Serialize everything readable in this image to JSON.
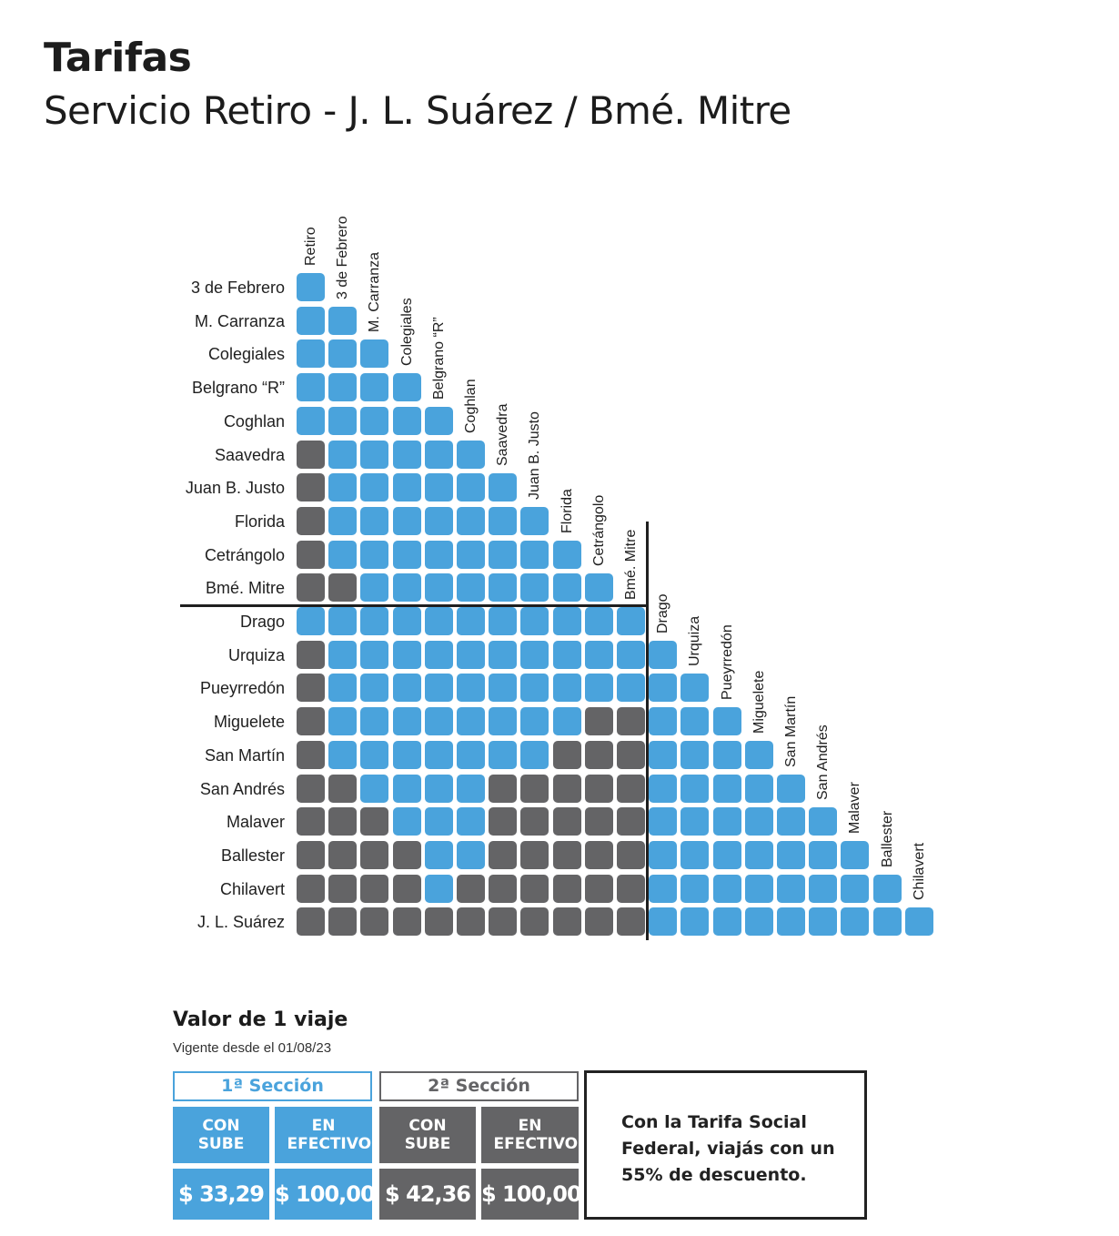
{
  "header": {
    "title": "Tarifas",
    "subtitle": "Servicio Retiro - J. L. Suárez / Bmé. Mitre"
  },
  "stations": {
    "columns": [
      "Retiro",
      "3 de Febrero",
      "M. Carranza",
      "Colegiales",
      "Belgrano “R”",
      "Coghlan",
      "Saavedra",
      "Juan B. Justo",
      "Florida",
      "Cetrángolo",
      "Bmé. Mitre",
      "Drago",
      "Urquiza",
      "Pueyrredón",
      "Miguelete",
      "San Martín",
      "San Andrés",
      "Malaver",
      "Ballester",
      "Chilavert"
    ],
    "rows": [
      "3 de Febrero",
      "M. Carranza",
      "Colegiales",
      "Belgrano “R”",
      "Coghlan",
      "Saavedra",
      "Juan B. Justo",
      "Florida",
      "Cetrángolo",
      "Bmé. Mitre",
      "Drago",
      "Urquiza",
      "Pueyrredón",
      "Miguelete",
      "San Martín",
      "San Andrés",
      "Malaver",
      "Ballester",
      "Chilavert",
      "J. L. Suárez"
    ]
  },
  "fare_matrix": {
    "legend": "1 = 1ª Sección, 2 = 2ª Sección",
    "rows": [
      [
        1
      ],
      [
        1,
        1
      ],
      [
        1,
        1,
        1
      ],
      [
        1,
        1,
        1,
        1
      ],
      [
        1,
        1,
        1,
        1,
        1
      ],
      [
        2,
        1,
        1,
        1,
        1,
        1
      ],
      [
        2,
        1,
        1,
        1,
        1,
        1,
        1
      ],
      [
        2,
        1,
        1,
        1,
        1,
        1,
        1,
        1
      ],
      [
        2,
        1,
        1,
        1,
        1,
        1,
        1,
        1,
        1
      ],
      [
        2,
        2,
        1,
        1,
        1,
        1,
        1,
        1,
        1,
        1
      ],
      [
        1,
        1,
        1,
        1,
        1,
        1,
        1,
        1,
        1,
        1,
        1
      ],
      [
        2,
        1,
        1,
        1,
        1,
        1,
        1,
        1,
        1,
        1,
        1,
        1
      ],
      [
        2,
        1,
        1,
        1,
        1,
        1,
        1,
        1,
        1,
        1,
        1,
        1,
        1
      ],
      [
        2,
        1,
        1,
        1,
        1,
        1,
        1,
        1,
        1,
        2,
        2,
        1,
        1,
        1
      ],
      [
        2,
        1,
        1,
        1,
        1,
        1,
        1,
        1,
        2,
        2,
        2,
        1,
        1,
        1,
        1
      ],
      [
        2,
        2,
        1,
        1,
        1,
        1,
        2,
        2,
        2,
        2,
        2,
        1,
        1,
        1,
        1,
        1
      ],
      [
        2,
        2,
        2,
        1,
        1,
        1,
        2,
        2,
        2,
        2,
        2,
        1,
        1,
        1,
        1,
        1,
        1
      ],
      [
        2,
        2,
        2,
        2,
        1,
        1,
        2,
        2,
        2,
        2,
        2,
        1,
        1,
        1,
        1,
        1,
        1,
        1
      ],
      [
        2,
        2,
        2,
        2,
        1,
        2,
        2,
        2,
        2,
        2,
        2,
        1,
        1,
        1,
        1,
        1,
        1,
        1,
        1
      ],
      [
        2,
        2,
        2,
        2,
        2,
        2,
        2,
        2,
        2,
        2,
        2,
        1,
        1,
        1,
        1,
        1,
        1,
        1,
        1,
        1
      ]
    ]
  },
  "fares": {
    "title": "Valor de 1 viaje",
    "valid_from": "Vigente desde el 01/08/23",
    "section1": {
      "label": "1ª Sección",
      "color": "#4aa3dc",
      "con_sube_label": "CON SUBE",
      "efectivo_label": "EN EFECTIVO",
      "con_sube_price": "$ 33,29",
      "efectivo_price": "$ 100,00"
    },
    "section2": {
      "label": "2ª Sección",
      "color": "#646466",
      "con_sube_label": "CON SUBE",
      "efectivo_label": "EN EFECTIVO",
      "con_sube_price": "$ 42,36",
      "efectivo_price": "$ 100,00"
    },
    "social_note": "Con la Tarifa Social Federal, viajás con un 55% de descuento."
  }
}
